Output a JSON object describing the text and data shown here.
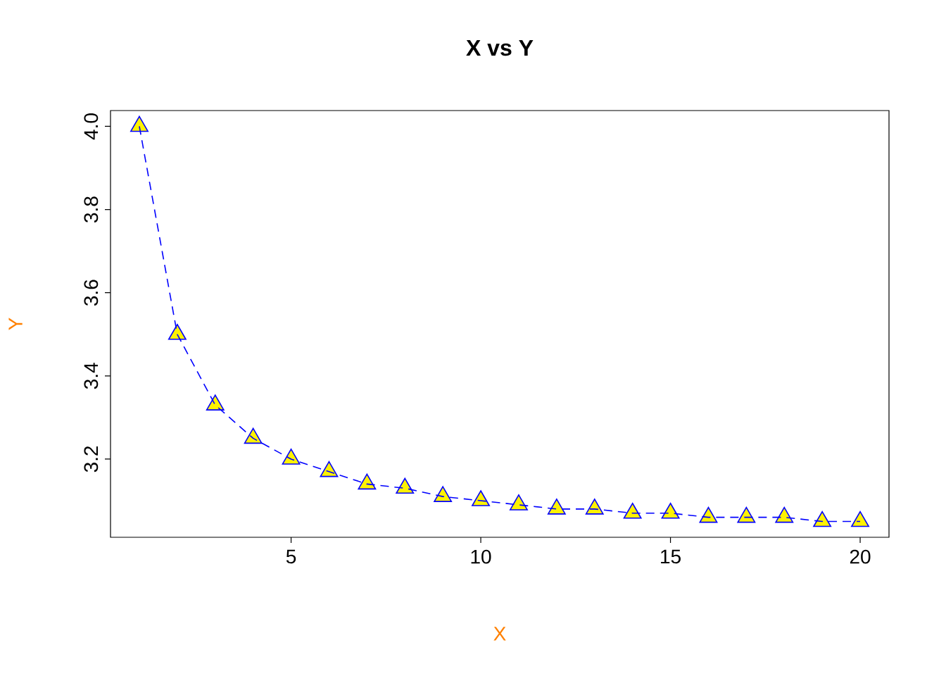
{
  "chart_data": {
    "type": "line",
    "title": "X vs Y",
    "xlabel": "X",
    "ylabel": "Y",
    "x": [
      1,
      2,
      3,
      4,
      5,
      6,
      7,
      8,
      9,
      10,
      11,
      12,
      13,
      14,
      15,
      16,
      17,
      18,
      19,
      20
    ],
    "series": [
      {
        "color": "#0000ff",
        "values": [
          4.0,
          3.5,
          3.33,
          3.25,
          3.2,
          3.17,
          3.14,
          3.13,
          3.11,
          3.1,
          3.09,
          3.08,
          3.08,
          3.07,
          3.07,
          3.06,
          3.06,
          3.06,
          3.05,
          3.05
        ]
      }
    ],
    "xlim": [
      0.24,
      20.76
    ],
    "ylim": [
      3.012,
      4.038
    ],
    "xticks": [
      5,
      10,
      15,
      20
    ],
    "yticks": [
      3.2,
      3.4,
      3.6,
      3.8,
      {
        "value": 4,
        "label": "4.0"
      }
    ],
    "marker": "triangle",
    "line_style": "dashed",
    "grid": false
  }
}
